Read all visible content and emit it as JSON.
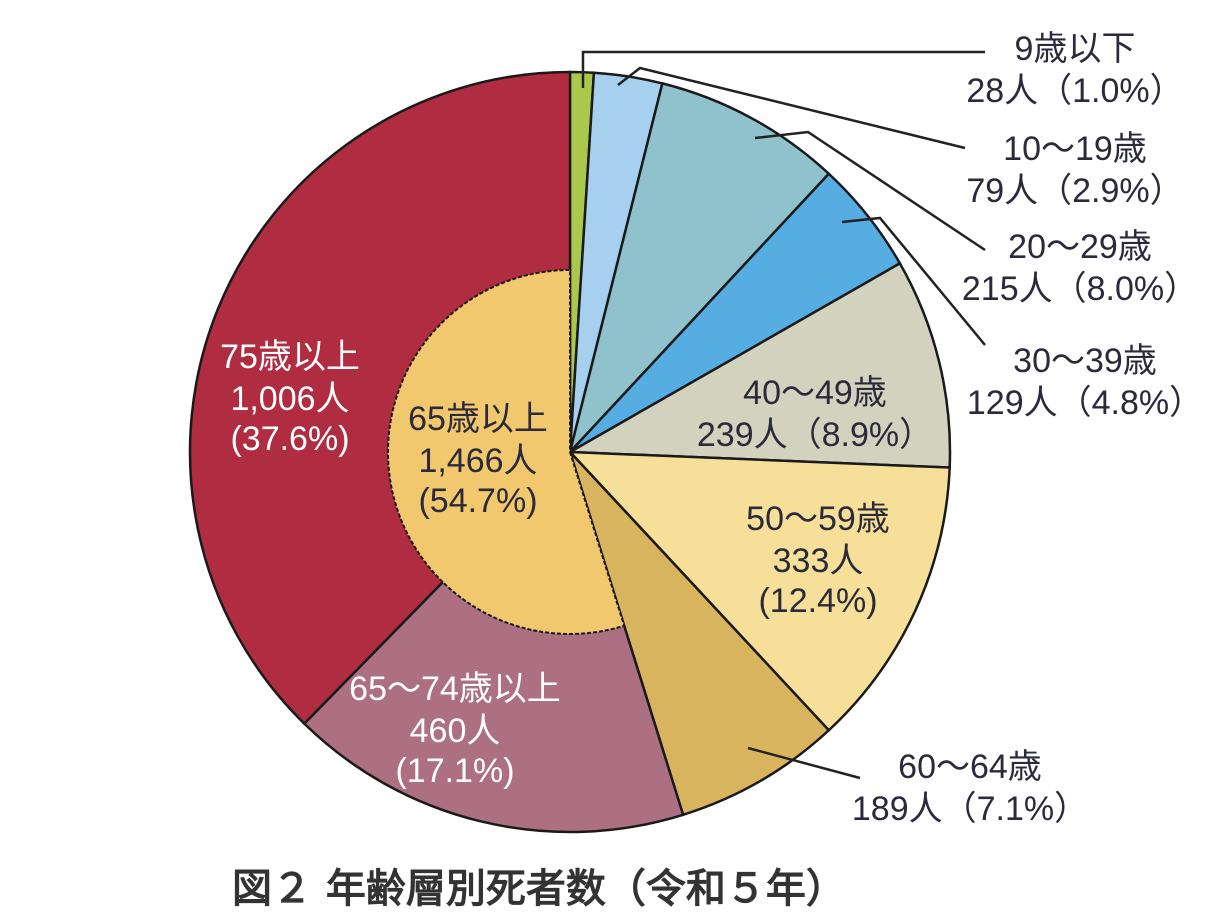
{
  "chart_data": {
    "type": "pie",
    "title": "図２ 年齢層別死者数（令和５年）",
    "figure_number": "図２",
    "title_text": "年齢層別死者数（令和５年）",
    "unit": "人",
    "total_note": "",
    "slices": [
      {
        "label": "9歳以下",
        "count": "28人",
        "value": 28,
        "percent": 1.0,
        "percent_text": "(1.0%)",
        "color": "#a9c84c",
        "label_pos": "outside"
      },
      {
        "label": "10～19歳",
        "count": "79人",
        "value": 79,
        "percent": 2.9,
        "percent_text": "(2.9%)",
        "color": "#a7d0ee",
        "label_pos": "outside"
      },
      {
        "label": "20～29歳",
        "count": "215人",
        "value": 215,
        "percent": 8.0,
        "percent_text": "(8.0%)",
        "color": "#8fc2cc",
        "label_pos": "outside"
      },
      {
        "label": "30～39歳",
        "count": "129人",
        "value": 129,
        "percent": 4.8,
        "percent_text": "(4.8%)",
        "color": "#55ade2",
        "label_pos": "outside"
      },
      {
        "label": "40～49歳",
        "count": "239人",
        "value": 239,
        "percent": 8.9,
        "percent_text": "(8.9%)",
        "color": "#d2d2be",
        "label_pos": "inside"
      },
      {
        "label": "50～59歳",
        "count": "333人",
        "value": 333,
        "percent": 12.4,
        "percent_text": "(12.4%)",
        "color": "#f6df98",
        "label_pos": "inside"
      },
      {
        "label": "60～64歳",
        "count": "189人",
        "value": 189,
        "percent": 7.1,
        "percent_text": "(7.1%)",
        "color": "#d8b45e",
        "label_pos": "outside"
      },
      {
        "label": "65～74歳以上",
        "count": "460人",
        "value": 460,
        "percent": 17.1,
        "percent_text": "(17.1%)",
        "color": "#ad7082",
        "label_pos": "inside"
      },
      {
        "label": "75歳以上",
        "count": "1,006人",
        "value": 1006,
        "percent": 37.6,
        "percent_text": "(37.6%)",
        "color": "#b02c40",
        "label_pos": "inside"
      }
    ],
    "inner_group": {
      "label": "65歳以上",
      "count": "1,466人",
      "value": 1466,
      "percent": 54.7,
      "percent_text": "(54.7%)",
      "color": "#f2c86e"
    },
    "legend": "none (direct labels with leader lines)"
  },
  "labels": {
    "s0": {
      "line1": "9歳以下",
      "line2": "28人（1.0%）"
    },
    "s1": {
      "line1": "10～19歳",
      "line2": "79人（2.9%）"
    },
    "s2": {
      "line1": "20～29歳",
      "line2": "215人（8.0%）"
    },
    "s3": {
      "line1": "30～39歳",
      "line2": "129人（4.8%）"
    },
    "s4": {
      "line1": "40～49歳",
      "line2": "239人（8.9%）"
    },
    "s5": {
      "line1": "50～59歳",
      "line2": "333人",
      "line3": "(12.4%)"
    },
    "s6": {
      "line1": "60～64歳",
      "line2": "189人（7.1%）"
    },
    "s7": {
      "line1": "65～74歳以上",
      "line2": "460人",
      "line3": "(17.1%)"
    },
    "s8": {
      "line1": "75歳以上",
      "line2": "1,006人",
      "line3": "(37.6%)"
    },
    "inner": {
      "line1": "65歳以上",
      "line2": "1,466人",
      "line3": "(54.7%)"
    },
    "title": "図２  年齢層別死者数（令和５年）"
  }
}
